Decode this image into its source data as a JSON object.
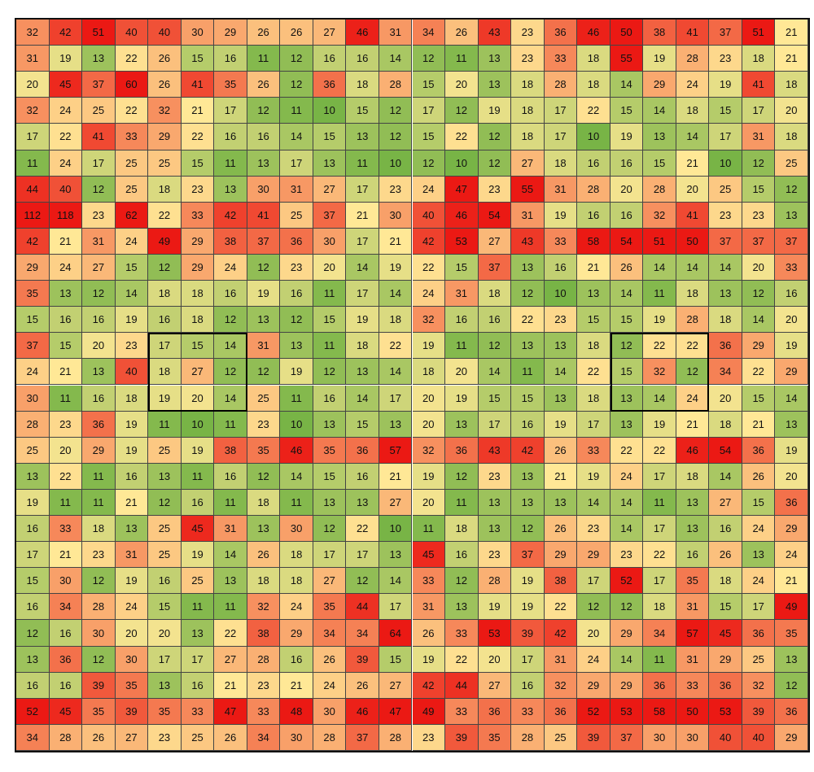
{
  "table": {
    "rows": [
      [
        32,
        42,
        51,
        40,
        40,
        30,
        29,
        26,
        26,
        27,
        46,
        31,
        34,
        26,
        43,
        23,
        36,
        46,
        50,
        38,
        41,
        37,
        51,
        21
      ],
      [
        31,
        19,
        13,
        22,
        26,
        15,
        16,
        11,
        12,
        16,
        16,
        14,
        12,
        11,
        13,
        23,
        33,
        18,
        55,
        19,
        28,
        23,
        18,
        21
      ],
      [
        20,
        45,
        37,
        60,
        26,
        41,
        35,
        26,
        12,
        36,
        18,
        28,
        15,
        20,
        13,
        18,
        28,
        18,
        14,
        29,
        24,
        19,
        41,
        18
      ],
      [
        32,
        24,
        25,
        22,
        32,
        21,
        17,
        12,
        11,
        10,
        15,
        12,
        17,
        12,
        19,
        18,
        17,
        22,
        15,
        14,
        18,
        15,
        17,
        20
      ],
      [
        17,
        22,
        41,
        33,
        29,
        22,
        16,
        16,
        14,
        15,
        13,
        12,
        15,
        22,
        12,
        18,
        17,
        10,
        19,
        13,
        14,
        17,
        31,
        18
      ],
      [
        11,
        24,
        17,
        25,
        25,
        15,
        11,
        13,
        17,
        13,
        11,
        10,
        12,
        10,
        12,
        27,
        18,
        16,
        16,
        15,
        21,
        10,
        12,
        25
      ],
      [
        44,
        40,
        12,
        25,
        18,
        23,
        13,
        30,
        31,
        27,
        17,
        23,
        24,
        47,
        23,
        55,
        31,
        28,
        20,
        28,
        20,
        25,
        15,
        12
      ],
      [
        112,
        118,
        23,
        62,
        22,
        33,
        42,
        41,
        25,
        37,
        21,
        30,
        40,
        46,
        54,
        31,
        19,
        16,
        16,
        32,
        41,
        23,
        23,
        13
      ],
      [
        42,
        21,
        31,
        24,
        49,
        29,
        38,
        37,
        36,
        30,
        17,
        21,
        42,
        53,
        27,
        43,
        33,
        58,
        54,
        51,
        50,
        37,
        37,
        37
      ],
      [
        29,
        24,
        27,
        15,
        12,
        29,
        24,
        12,
        23,
        20,
        14,
        19,
        22,
        15,
        37,
        13,
        16,
        21,
        26,
        14,
        14,
        14,
        20,
        33
      ],
      [
        35,
        13,
        12,
        14,
        18,
        18,
        16,
        19,
        16,
        11,
        17,
        14,
        24,
        31,
        18,
        12,
        10,
        13,
        14,
        11,
        18,
        13,
        12,
        16
      ],
      [
        15,
        16,
        16,
        19,
        16,
        18,
        12,
        13,
        12,
        15,
        19,
        18,
        32,
        16,
        16,
        22,
        23,
        15,
        15,
        19,
        28,
        18,
        14,
        20
      ],
      [
        37,
        15,
        20,
        23,
        17,
        15,
        14,
        31,
        13,
        11,
        18,
        22,
        19,
        11,
        12,
        13,
        13,
        18,
        12,
        22,
        22,
        36,
        29,
        19
      ],
      [
        24,
        21,
        13,
        40,
        18,
        27,
        12,
        12,
        19,
        12,
        13,
        14,
        18,
        20,
        14,
        11,
        14,
        22,
        15,
        32,
        12,
        34,
        22,
        29
      ],
      [
        30,
        11,
        16,
        18,
        19,
        20,
        14,
        25,
        11,
        16,
        14,
        17,
        20,
        19,
        15,
        15,
        13,
        18,
        13,
        14,
        24,
        20,
        15,
        14
      ],
      [
        28,
        23,
        36,
        19,
        11,
        10,
        11,
        23,
        10,
        13,
        15,
        13,
        20,
        13,
        17,
        16,
        19,
        17,
        13,
        19,
        21,
        18,
        21,
        13
      ],
      [
        25,
        20,
        29,
        19,
        25,
        19,
        38,
        35,
        46,
        35,
        36,
        57,
        32,
        36,
        43,
        42,
        26,
        33,
        22,
        22,
        46,
        54,
        36,
        19
      ],
      [
        13,
        22,
        11,
        16,
        13,
        11,
        16,
        12,
        14,
        15,
        16,
        21,
        19,
        12,
        23,
        13,
        21,
        19,
        24,
        17,
        18,
        14,
        26,
        20
      ],
      [
        19,
        11,
        11,
        21,
        12,
        16,
        11,
        18,
        11,
        13,
        13,
        27,
        20,
        11,
        13,
        13,
        13,
        14,
        14,
        11,
        13,
        27,
        15,
        36
      ],
      [
        16,
        33,
        18,
        13,
        25,
        45,
        31,
        13,
        30,
        12,
        22,
        10,
        11,
        18,
        13,
        12,
        26,
        23,
        14,
        17,
        13,
        16,
        24,
        29
      ],
      [
        17,
        21,
        23,
        31,
        25,
        19,
        14,
        26,
        18,
        17,
        17,
        13,
        45,
        16,
        23,
        37,
        29,
        29,
        23,
        22,
        16,
        26,
        13,
        24
      ],
      [
        15,
        30,
        12,
        19,
        16,
        25,
        13,
        18,
        18,
        27,
        12,
        14,
        33,
        12,
        28,
        19,
        38,
        17,
        52,
        17,
        35,
        18,
        24,
        21
      ],
      [
        16,
        34,
        28,
        24,
        15,
        11,
        11,
        32,
        24,
        35,
        44,
        17,
        31,
        13,
        19,
        19,
        22,
        12,
        12,
        18,
        31,
        15,
        17,
        49
      ],
      [
        12,
        16,
        30,
        20,
        20,
        13,
        22,
        38,
        29,
        34,
        34,
        64,
        26,
        33,
        53,
        39,
        42,
        20,
        29,
        34,
        57,
        45,
        36,
        35
      ],
      [
        13,
        36,
        12,
        30,
        17,
        17,
        27,
        28,
        16,
        26,
        39,
        15,
        19,
        22,
        20,
        17,
        31,
        24,
        14,
        11,
        31,
        29,
        25,
        13
      ],
      [
        16,
        16,
        39,
        35,
        13,
        16,
        21,
        23,
        21,
        24,
        26,
        27,
        42,
        44,
        27,
        16,
        32,
        29,
        29,
        36,
        33,
        36,
        32,
        12
      ],
      [
        52,
        45,
        35,
        39,
        35,
        33,
        47,
        33,
        48,
        30,
        46,
        47,
        49,
        33,
        36,
        33,
        36,
        52,
        53,
        58,
        50,
        53,
        39,
        36
      ],
      [
        34,
        28,
        26,
        27,
        23,
        25,
        26,
        34,
        30,
        28,
        37,
        28,
        23,
        39,
        35,
        28,
        25,
        39,
        37,
        30,
        30,
        40,
        40,
        29
      ]
    ]
  }
}
